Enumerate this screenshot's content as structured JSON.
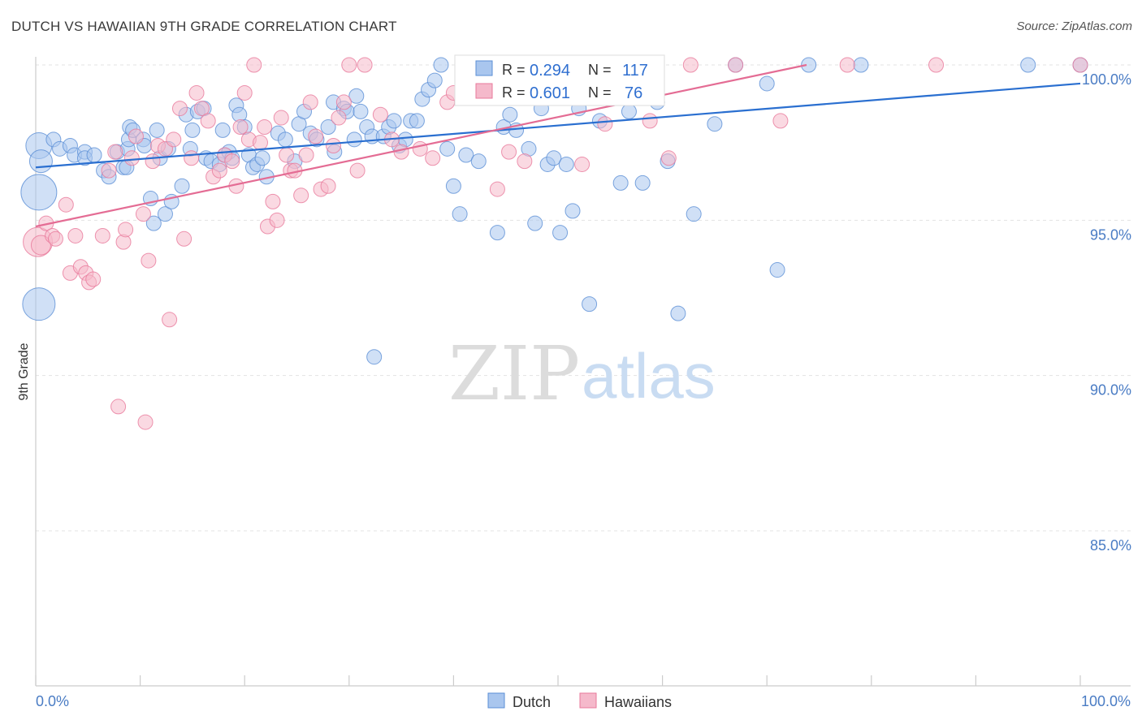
{
  "title": "DUTCH VS HAWAIIAN 9TH GRADE CORRELATION CHART",
  "source": "Source: ZipAtlas.com",
  "watermark": {
    "zip": "ZIP",
    "atlas": "atlas"
  },
  "colors": {
    "dutch": "#5b8fd6",
    "dutch_fill": "#a9c6ee",
    "hawaiians": "#e8799b",
    "hawaiians_fill": "#f5b9cb",
    "dutch_line": "#2a6fd0",
    "hawaiians_line": "#e46c94"
  },
  "stats": [
    {
      "r_label": "R =",
      "r_value": "0.294",
      "n_label": "N =",
      "n_value": "117"
    },
    {
      "r_label": "R =",
      "r_value": "0.601",
      "n_label": "N =",
      "n_value": "76"
    }
  ],
  "chart_data": {
    "type": "scatter",
    "xlabel": "",
    "ylabel": "9th Grade",
    "xlim": [
      0,
      100
    ],
    "ylim": [
      80.5,
      100.7
    ],
    "x_ticks": [
      "0.0%",
      "100.0%"
    ],
    "y_ticks": [
      {
        "value": 100,
        "label": "100.0%"
      },
      {
        "value": 95,
        "label": "95.0%"
      },
      {
        "value": 90,
        "label": "90.0%"
      },
      {
        "value": 85,
        "label": "85.0%"
      }
    ],
    "legend": [
      "Dutch",
      "Hawaiians"
    ],
    "grid": true,
    "series": [
      {
        "name": "Dutch",
        "trend": [
          [
            0,
            96.7
          ],
          [
            100,
            99.4
          ]
        ],
        "points": [
          [
            0.3,
            97.4,
            16
          ],
          [
            0.5,
            96.9,
            14
          ],
          [
            0.3,
            95.9,
            22
          ],
          [
            0.3,
            92.3,
            20
          ],
          [
            1.7,
            97.6,
            9
          ],
          [
            2.3,
            97.3,
            9
          ],
          [
            3.3,
            97.4,
            9
          ],
          [
            3.7,
            97.1,
            9
          ],
          [
            4.7,
            97.2,
            9
          ],
          [
            4.7,
            97.0,
            9
          ],
          [
            5.6,
            97.1,
            9
          ],
          [
            6.5,
            96.6,
            9
          ],
          [
            7.0,
            96.4,
            9
          ],
          [
            7.8,
            97.2,
            9
          ],
          [
            8.4,
            96.7,
            9
          ],
          [
            8.7,
            96.7,
            9
          ],
          [
            8.8,
            97.3,
            9
          ],
          [
            8.9,
            97.6,
            9
          ],
          [
            9.0,
            98.0,
            9
          ],
          [
            9.3,
            97.9,
            9
          ],
          [
            10.3,
            97.6,
            9
          ],
          [
            10.4,
            97.4,
            9
          ],
          [
            11.0,
            95.7,
            9
          ],
          [
            11.3,
            94.9,
            9
          ],
          [
            11.6,
            97.9,
            9
          ],
          [
            11.9,
            97.0,
            9
          ],
          [
            12.4,
            95.2,
            9
          ],
          [
            12.7,
            97.3,
            9
          ],
          [
            13.0,
            95.6,
            9
          ],
          [
            14.0,
            96.1,
            9
          ],
          [
            14.4,
            98.4,
            9
          ],
          [
            14.8,
            97.3,
            9
          ],
          [
            15.0,
            97.9,
            9
          ],
          [
            15.5,
            98.5,
            9
          ],
          [
            16.1,
            98.6,
            9
          ],
          [
            16.3,
            97.0,
            9
          ],
          [
            16.8,
            96.9,
            9
          ],
          [
            17.6,
            96.8,
            9
          ],
          [
            17.9,
            97.9,
            9
          ],
          [
            18.1,
            97.1,
            9
          ],
          [
            18.5,
            97.2,
            9
          ],
          [
            18.8,
            97.0,
            9
          ],
          [
            19.2,
            98.7,
            9
          ],
          [
            19.5,
            98.4,
            9
          ],
          [
            20.0,
            98.0,
            9
          ],
          [
            20.4,
            97.1,
            9
          ],
          [
            20.8,
            96.7,
            9
          ],
          [
            21.2,
            96.8,
            9
          ],
          [
            21.7,
            97.0,
            9
          ],
          [
            22.1,
            96.4,
            9
          ],
          [
            23.2,
            97.8,
            9
          ],
          [
            23.9,
            97.6,
            9
          ],
          [
            24.8,
            96.9,
            9
          ],
          [
            25.2,
            98.1,
            9
          ],
          [
            25.7,
            98.5,
            9
          ],
          [
            26.3,
            97.8,
            9
          ],
          [
            26.9,
            97.6,
            9
          ],
          [
            28.0,
            98.0,
            9
          ],
          [
            28.5,
            98.8,
            9
          ],
          [
            28.6,
            97.2,
            9
          ],
          [
            29.5,
            98.6,
            9
          ],
          [
            29.8,
            98.5,
            9
          ],
          [
            30.5,
            97.6,
            9
          ],
          [
            30.7,
            99.0,
            9
          ],
          [
            31.1,
            98.5,
            9
          ],
          [
            31.7,
            98.0,
            9
          ],
          [
            32.2,
            97.7,
            9
          ],
          [
            32.4,
            90.6,
            9
          ],
          [
            33.3,
            97.7,
            9
          ],
          [
            33.8,
            98.0,
            9
          ],
          [
            34.3,
            98.2,
            9
          ],
          [
            34.8,
            97.4,
            9
          ],
          [
            35.4,
            97.6,
            9
          ],
          [
            35.9,
            98.2,
            9
          ],
          [
            36.5,
            98.2,
            9
          ],
          [
            37.0,
            98.9,
            9
          ],
          [
            37.6,
            99.2,
            9
          ],
          [
            38.2,
            99.5,
            9
          ],
          [
            38.8,
            100.0,
            9
          ],
          [
            39.4,
            97.3,
            9
          ],
          [
            40.0,
            96.1,
            9
          ],
          [
            40.6,
            95.2,
            9
          ],
          [
            41.2,
            97.1,
            9
          ],
          [
            41.8,
            99.2,
            9
          ],
          [
            42.4,
            96.9,
            9
          ],
          [
            43.0,
            100.0,
            9
          ],
          [
            43.6,
            99.4,
            9
          ],
          [
            44.2,
            94.6,
            9
          ],
          [
            44.8,
            98.0,
            9
          ],
          [
            45.4,
            98.4,
            9
          ],
          [
            46.0,
            97.9,
            9
          ],
          [
            46.6,
            99.0,
            9
          ],
          [
            47.2,
            97.3,
            9
          ],
          [
            47.8,
            94.9,
            9
          ],
          [
            48.4,
            98.6,
            9
          ],
          [
            49.0,
            96.8,
            9
          ],
          [
            49.6,
            97.0,
            9
          ],
          [
            50.2,
            94.6,
            9
          ],
          [
            50.8,
            96.8,
            9
          ],
          [
            51.4,
            95.3,
            9
          ],
          [
            52.0,
            98.6,
            9
          ],
          [
            53.0,
            92.3,
            9
          ],
          [
            54.0,
            98.2,
            9
          ],
          [
            56.0,
            96.2,
            9
          ],
          [
            56.8,
            98.5,
            9
          ],
          [
            58.1,
            96.2,
            9
          ],
          [
            59.5,
            98.8,
            9
          ],
          [
            60.5,
            96.9,
            9
          ],
          [
            61.5,
            92.0,
            9
          ],
          [
            63.0,
            95.2,
            9
          ],
          [
            65.0,
            98.1,
            9
          ],
          [
            67.0,
            100.0,
            9
          ],
          [
            70.0,
            99.4,
            9
          ],
          [
            71.0,
            93.4,
            9
          ],
          [
            74.0,
            100.0,
            9
          ],
          [
            79.0,
            100.0,
            9
          ],
          [
            95.0,
            100.0,
            9
          ],
          [
            100.0,
            100.0,
            9
          ]
        ]
      },
      {
        "name": "Hawaiians",
        "trend": [
          [
            0,
            94.8
          ],
          [
            73.8,
            100.0
          ]
        ],
        "points": [
          [
            0.2,
            94.3,
            18
          ],
          [
            0.5,
            94.2,
            12
          ],
          [
            1.0,
            94.9,
            9
          ],
          [
            1.6,
            94.5,
            9
          ],
          [
            1.9,
            94.4,
            9
          ],
          [
            2.9,
            95.5,
            9
          ],
          [
            3.3,
            93.3,
            9
          ],
          [
            3.8,
            94.5,
            9
          ],
          [
            4.3,
            93.5,
            9
          ],
          [
            4.8,
            93.3,
            9
          ],
          [
            5.1,
            93.0,
            9
          ],
          [
            5.5,
            93.1,
            9
          ],
          [
            6.4,
            94.5,
            9
          ],
          [
            7.0,
            96.6,
            9
          ],
          [
            7.6,
            97.2,
            9
          ],
          [
            7.9,
            89.0,
            9
          ],
          [
            8.4,
            94.3,
            9
          ],
          [
            8.6,
            94.7,
            9
          ],
          [
            9.2,
            97.0,
            9
          ],
          [
            9.6,
            97.7,
            9
          ],
          [
            10.3,
            95.2,
            9
          ],
          [
            10.5,
            88.5,
            9
          ],
          [
            10.8,
            93.7,
            9
          ],
          [
            11.2,
            96.9,
            9
          ],
          [
            11.7,
            97.4,
            9
          ],
          [
            12.4,
            97.3,
            9
          ],
          [
            12.8,
            91.8,
            9
          ],
          [
            13.2,
            97.6,
            9
          ],
          [
            13.8,
            98.6,
            9
          ],
          [
            14.2,
            94.4,
            9
          ],
          [
            14.9,
            97.0,
            9
          ],
          [
            15.4,
            99.1,
            9
          ],
          [
            15.9,
            98.6,
            9
          ],
          [
            16.5,
            98.2,
            9
          ],
          [
            17.0,
            96.4,
            9
          ],
          [
            17.6,
            96.6,
            9
          ],
          [
            18.1,
            97.1,
            9
          ],
          [
            18.8,
            96.9,
            9
          ],
          [
            19.2,
            96.1,
            9
          ],
          [
            19.6,
            98.0,
            9
          ],
          [
            20.0,
            99.1,
            9
          ],
          [
            20.4,
            97.6,
            9
          ],
          [
            20.9,
            100.0,
            9
          ],
          [
            21.5,
            97.5,
            9
          ],
          [
            21.9,
            98.0,
            9
          ],
          [
            22.2,
            94.8,
            9
          ],
          [
            22.7,
            95.6,
            9
          ],
          [
            23.1,
            95.0,
            9
          ],
          [
            23.5,
            98.3,
            9
          ],
          [
            24.0,
            97.1,
            9
          ],
          [
            24.4,
            96.6,
            9
          ],
          [
            24.8,
            96.6,
            9
          ],
          [
            25.4,
            95.8,
            9
          ],
          [
            25.9,
            97.1,
            9
          ],
          [
            26.3,
            98.8,
            9
          ],
          [
            26.8,
            97.7,
            9
          ],
          [
            27.3,
            96.0,
            9
          ],
          [
            28.0,
            96.1,
            9
          ],
          [
            28.5,
            97.4,
            9
          ],
          [
            29.0,
            98.3,
            9
          ],
          [
            29.5,
            98.8,
            9
          ],
          [
            30.0,
            100.0,
            9
          ],
          [
            30.8,
            96.6,
            9
          ],
          [
            31.5,
            100.0,
            9
          ],
          [
            33.0,
            98.4,
            9
          ],
          [
            34.1,
            97.6,
            9
          ],
          [
            35.0,
            97.2,
            9
          ],
          [
            36.8,
            97.3,
            9
          ],
          [
            38.0,
            97.0,
            9
          ],
          [
            39.4,
            98.8,
            9
          ],
          [
            40.0,
            99.1,
            9
          ],
          [
            44.2,
            96.0,
            9
          ],
          [
            45.3,
            97.2,
            9
          ],
          [
            46.8,
            96.9,
            9
          ],
          [
            52.3,
            96.8,
            9
          ],
          [
            54.5,
            98.1,
            9
          ],
          [
            58.8,
            98.2,
            9
          ],
          [
            60.6,
            97.0,
            9
          ],
          [
            62.7,
            100.0,
            9
          ],
          [
            67.0,
            100.0,
            9
          ],
          [
            71.3,
            98.2,
            9
          ],
          [
            77.7,
            100.0,
            9
          ],
          [
            86.2,
            100.0,
            9
          ],
          [
            100.0,
            100.0,
            9
          ]
        ]
      }
    ]
  }
}
